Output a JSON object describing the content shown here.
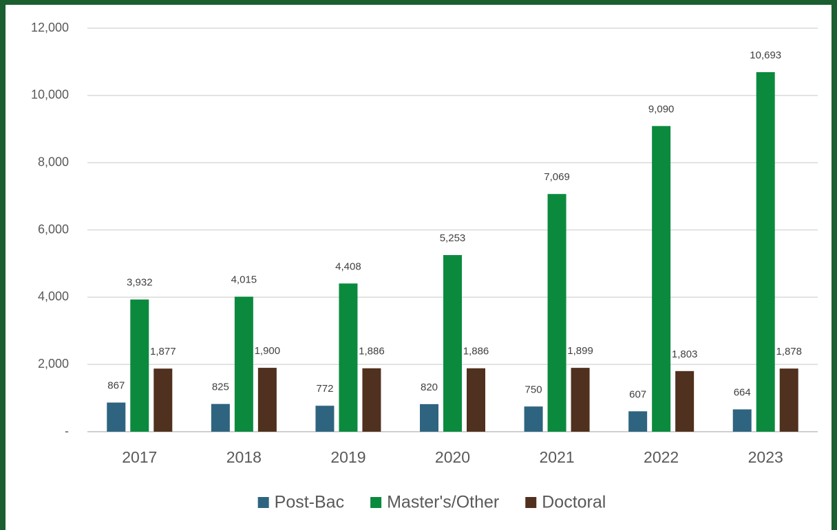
{
  "chart_data": {
    "type": "bar",
    "categories": [
      "2017",
      "2018",
      "2019",
      "2020",
      "2021",
      "2022",
      "2023"
    ],
    "series": [
      {
        "name": "Post-Bac",
        "color": "#2e6480",
        "values": [
          867,
          825,
          772,
          820,
          750,
          607,
          664
        ],
        "value_labels": [
          "867",
          "825",
          "772",
          "820",
          "750",
          "607",
          "664"
        ]
      },
      {
        "name": "Master's/Other",
        "color": "#0b8a3e",
        "values": [
          3932,
          4015,
          4408,
          5253,
          7069,
          9090,
          10693
        ],
        "value_labels": [
          "3,932",
          "4,015",
          "4,408",
          "5,253",
          "7,069",
          "9,090",
          "10,693"
        ]
      },
      {
        "name": "Doctoral",
        "color": "#50301e",
        "values": [
          1877,
          1900,
          1886,
          1886,
          1899,
          1803,
          1878
        ],
        "value_labels": [
          "1,877",
          "1,900",
          "1,886",
          "1,886",
          "1,899",
          "1,803",
          "1,878"
        ]
      }
    ],
    "ylim": [
      0,
      12000
    ],
    "yticks": [
      {
        "value": 0,
        "label": "-"
      },
      {
        "value": 2000,
        "label": "2,000"
      },
      {
        "value": 4000,
        "label": "4,000"
      },
      {
        "value": 6000,
        "label": "6,000"
      },
      {
        "value": 8000,
        "label": "8,000"
      },
      {
        "value": 10000,
        "label": "10,000"
      },
      {
        "value": 12000,
        "label": "12,000"
      }
    ],
    "grid": true,
    "legend": "bottom"
  }
}
